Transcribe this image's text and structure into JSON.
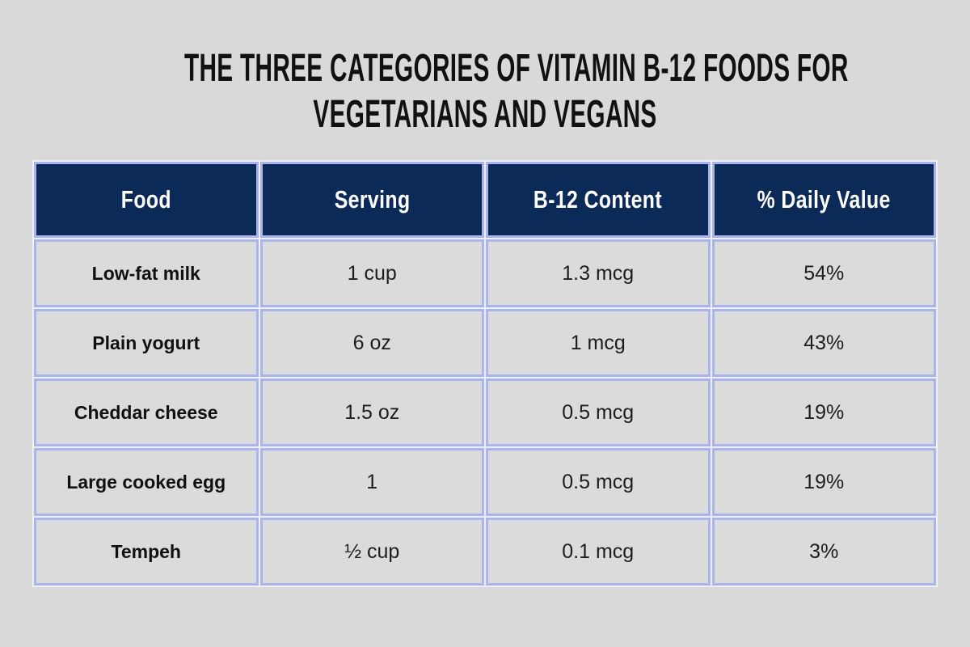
{
  "title": {
    "line1": "THE THREE CATEGORIES OF VITAMIN B-12 FOODS FOR",
    "line2": "VEGETARIANS AND VEGANS"
  },
  "chart_data": {
    "type": "table",
    "title": "THE THREE CATEGORIES OF VITAMIN B-12 FOODS FOR VEGETARIANS AND VEGANS",
    "columns": [
      "Food",
      "Serving",
      "B-12 Content",
      "% Daily Value"
    ],
    "rows": [
      [
        "Low-fat milk",
        "1 cup",
        "1.3 mcg",
        "54%"
      ],
      [
        "Plain yogurt",
        "6 oz",
        "1 mcg",
        "43%"
      ],
      [
        "Cheddar cheese",
        "1.5 oz",
        "0.5 mcg",
        "19%"
      ],
      [
        "Large cooked egg",
        "1",
        "0.5 mcg",
        "19%"
      ],
      [
        "Tempeh",
        "½ cup",
        "0.1 mcg",
        "3%"
      ]
    ]
  },
  "colors": {
    "page_bg": "#d9d9d9",
    "cell_bg": "#dbdbdb",
    "header_bg": "#0c2a58",
    "header_text": "#ffffff",
    "border": "#aab4e8",
    "table_gap": "#eef0f8",
    "title_text": "#111111",
    "body_text": "#1d1d1d"
  }
}
